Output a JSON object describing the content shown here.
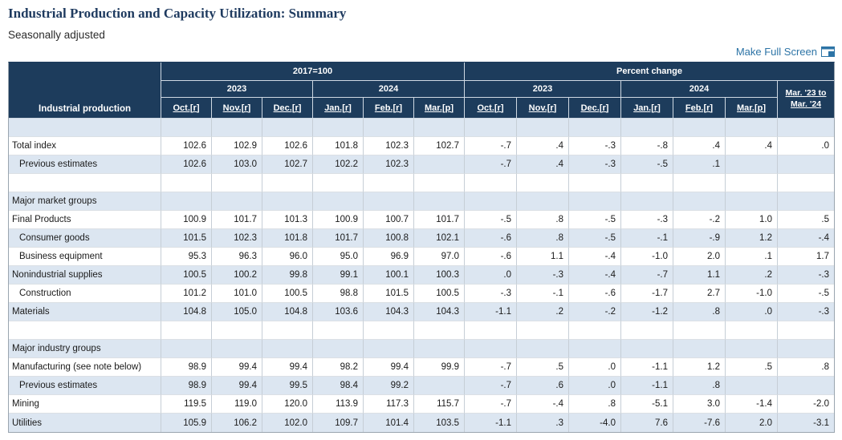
{
  "page": {
    "title": "Industrial Production and Capacity Utilization: Summary",
    "subtitle": "Seasonally adjusted",
    "fullscreen_label": "Make Full Screen"
  },
  "colors": {
    "header_bg": "#1d3c5c",
    "alt_row_bg": "#dce6f1",
    "link_blue": "#2d74a6",
    "title_navy": "#1e3a5f"
  },
  "icons": {
    "fullscreen": "window-expand-icon"
  },
  "table": {
    "corner_label": "Industrial production",
    "groups": [
      {
        "label": "2017=100",
        "span": 6
      },
      {
        "label": "Percent change",
        "span": 7
      }
    ],
    "year_groups": [
      {
        "label": "2023",
        "span": 3
      },
      {
        "label": "2024",
        "span": 3
      },
      {
        "label": "2023",
        "span": 3
      },
      {
        "label": "2024",
        "span": 3
      }
    ],
    "annual_col_label": "Mar. '23 to Mar. '24",
    "month_headers": [
      "Oct.[r]",
      "Nov.[r]",
      "Dec.[r]",
      "Jan.[r]",
      "Feb.[r]",
      "Mar.[p]",
      "Oct.[r]",
      "Nov.[r]",
      "Dec.[r]",
      "Jan.[r]",
      "Feb.[r]",
      "Mar.[p]"
    ],
    "rows": [
      {
        "type": "spacer",
        "label": "",
        "indent": false,
        "values": [
          "",
          "",
          "",
          "",
          "",
          "",
          "",
          "",
          "",
          "",
          "",
          "",
          ""
        ]
      },
      {
        "type": "data",
        "label": "Total index",
        "indent": false,
        "values": [
          "102.6",
          "102.9",
          "102.6",
          "101.8",
          "102.3",
          "102.7",
          "-.7",
          ".4",
          "-.3",
          "-.8",
          ".4",
          ".4",
          ".0"
        ]
      },
      {
        "type": "data",
        "label": "Previous estimates",
        "indent": true,
        "values": [
          "102.6",
          "103.0",
          "102.7",
          "102.2",
          "102.3",
          "",
          "-.7",
          ".4",
          "-.3",
          "-.5",
          ".1",
          "",
          ""
        ]
      },
      {
        "type": "spacer",
        "label": "",
        "indent": false,
        "values": [
          "",
          "",
          "",
          "",
          "",
          "",
          "",
          "",
          "",
          "",
          "",
          "",
          ""
        ]
      },
      {
        "type": "section",
        "label": "Major market groups",
        "indent": false,
        "values": [
          "",
          "",
          "",
          "",
          "",
          "",
          "",
          "",
          "",
          "",
          "",
          "",
          ""
        ]
      },
      {
        "type": "data",
        "label": "Final Products",
        "indent": false,
        "values": [
          "100.9",
          "101.7",
          "101.3",
          "100.9",
          "100.7",
          "101.7",
          "-.5",
          ".8",
          "-.5",
          "-.3",
          "-.2",
          "1.0",
          ".5"
        ]
      },
      {
        "type": "data",
        "label": "Consumer goods",
        "indent": true,
        "values": [
          "101.5",
          "102.3",
          "101.8",
          "101.7",
          "100.8",
          "102.1",
          "-.6",
          ".8",
          "-.5",
          "-.1",
          "-.9",
          "1.2",
          "-.4"
        ]
      },
      {
        "type": "data",
        "label": "Business equipment",
        "indent": true,
        "values": [
          "95.3",
          "96.3",
          "96.0",
          "95.0",
          "96.9",
          "97.0",
          "-.6",
          "1.1",
          "-.4",
          "-1.0",
          "2.0",
          ".1",
          "1.7"
        ]
      },
      {
        "type": "data",
        "label": "Nonindustrial supplies",
        "indent": false,
        "values": [
          "100.5",
          "100.2",
          "99.8",
          "99.1",
          "100.1",
          "100.3",
          ".0",
          "-.3",
          "-.4",
          "-.7",
          "1.1",
          ".2",
          "-.3"
        ]
      },
      {
        "type": "data",
        "label": "Construction",
        "indent": true,
        "values": [
          "101.2",
          "101.0",
          "100.5",
          "98.8",
          "101.5",
          "100.5",
          "-.3",
          "-.1",
          "-.6",
          "-1.7",
          "2.7",
          "-1.0",
          "-.5"
        ]
      },
      {
        "type": "data",
        "label": "Materials",
        "indent": false,
        "values": [
          "104.8",
          "105.0",
          "104.8",
          "103.6",
          "104.3",
          "104.3",
          "-1.1",
          ".2",
          "-.2",
          "-1.2",
          ".8",
          ".0",
          "-.3"
        ]
      },
      {
        "type": "spacer",
        "label": "",
        "indent": false,
        "values": [
          "",
          "",
          "",
          "",
          "",
          "",
          "",
          "",
          "",
          "",
          "",
          "",
          ""
        ]
      },
      {
        "type": "section",
        "label": "Major industry groups",
        "indent": false,
        "values": [
          "",
          "",
          "",
          "",
          "",
          "",
          "",
          "",
          "",
          "",
          "",
          "",
          ""
        ]
      },
      {
        "type": "data",
        "label": "Manufacturing (see note below)",
        "indent": false,
        "values": [
          "98.9",
          "99.4",
          "99.4",
          "98.2",
          "99.4",
          "99.9",
          "-.7",
          ".5",
          ".0",
          "-1.1",
          "1.2",
          ".5",
          ".8"
        ]
      },
      {
        "type": "data",
        "label": "Previous estimates",
        "indent": true,
        "values": [
          "98.9",
          "99.4",
          "99.5",
          "98.4",
          "99.2",
          "",
          "-.7",
          ".6",
          ".0",
          "-1.1",
          ".8",
          "",
          ""
        ]
      },
      {
        "type": "data",
        "label": "Mining",
        "indent": false,
        "values": [
          "119.5",
          "119.0",
          "120.0",
          "113.9",
          "117.3",
          "115.7",
          "-.7",
          "-.4",
          ".8",
          "-5.1",
          "3.0",
          "-1.4",
          "-2.0"
        ]
      },
      {
        "type": "data",
        "label": "Utilities",
        "indent": false,
        "values": [
          "105.9",
          "106.2",
          "102.0",
          "109.7",
          "101.4",
          "103.5",
          "-1.1",
          ".3",
          "-4.0",
          "7.6",
          "-7.6",
          "2.0",
          "-3.1"
        ]
      }
    ]
  }
}
